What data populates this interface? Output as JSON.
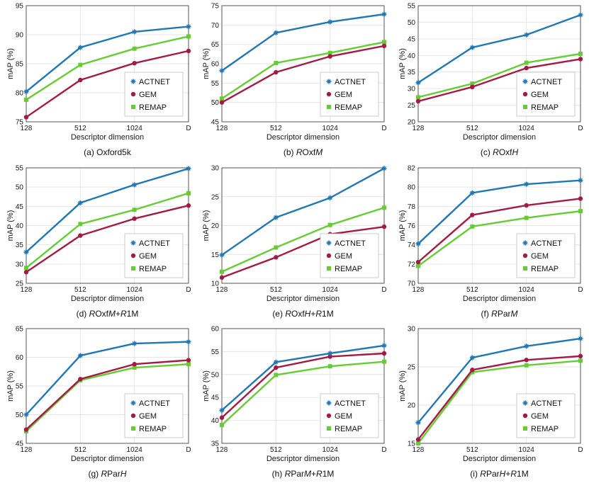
{
  "colors": {
    "ACTNET": "#1f77b4",
    "GEM": "#a31b45",
    "REMAP": "#66cc33",
    "grid": "#e6e6e6",
    "axis": "#333333"
  },
  "chart_data": [
    {
      "type": "line",
      "categories": [
        "128",
        "512",
        "1024",
        "D"
      ],
      "xlabel": "Descriptor dimension",
      "ylabel": "mAP (%)",
      "ylim": [
        75,
        95
      ],
      "yticks": [
        75,
        80,
        85,
        90,
        95
      ],
      "series": [
        {
          "name": "ACTNET",
          "values": [
            80.2,
            87.8,
            90.5,
            91.4
          ]
        },
        {
          "name": "GEM",
          "values": [
            75.8,
            82.2,
            85.1,
            87.2
          ]
        },
        {
          "name": "REMAP",
          "values": [
            78.8,
            84.8,
            87.6,
            89.7
          ]
        }
      ],
      "caption": [
        {
          "t": "(a) Oxford5k",
          "i": false
        }
      ]
    },
    {
      "type": "line",
      "categories": [
        "128",
        "512",
        "1024",
        "D"
      ],
      "xlabel": "Descriptor dimension",
      "ylabel": "mAP (%)",
      "ylim": [
        45,
        75
      ],
      "yticks": [
        45,
        50,
        55,
        60,
        65,
        70,
        75
      ],
      "series": [
        {
          "name": "ACTNET",
          "values": [
            58.2,
            68.0,
            70.8,
            72.8
          ]
        },
        {
          "name": "GEM",
          "values": [
            50.0,
            57.8,
            61.9,
            64.6
          ]
        },
        {
          "name": "REMAP",
          "values": [
            51.0,
            60.2,
            62.8,
            65.6
          ]
        }
      ],
      "caption": [
        {
          "t": "(b) ",
          "i": false
        },
        {
          "t": "R",
          "i": true
        },
        {
          "t": "Oxf",
          "i": false
        },
        {
          "t": "M",
          "i": true
        }
      ]
    },
    {
      "type": "line",
      "categories": [
        "128",
        "512",
        "1024",
        "D"
      ],
      "xlabel": "Descriptor dimension",
      "ylabel": "mAP (%)",
      "ylim": [
        20,
        55
      ],
      "yticks": [
        20,
        25,
        30,
        35,
        40,
        45,
        50,
        55
      ],
      "series": [
        {
          "name": "ACTNET",
          "values": [
            31.8,
            42.4,
            46.2,
            52.2
          ]
        },
        {
          "name": "GEM",
          "values": [
            26.2,
            30.5,
            36.2,
            38.9
          ]
        },
        {
          "name": "REMAP",
          "values": [
            27.4,
            31.5,
            37.8,
            40.5
          ]
        }
      ],
      "caption": [
        {
          "t": "(c) ",
          "i": false
        },
        {
          "t": "R",
          "i": true
        },
        {
          "t": "Oxf",
          "i": false
        },
        {
          "t": "H",
          "i": true
        }
      ]
    },
    {
      "type": "line",
      "categories": [
        "128",
        "512",
        "1024",
        "D"
      ],
      "xlabel": "Descriptor dimension",
      "ylabel": "mAP (%)",
      "ylim": [
        25,
        55
      ],
      "yticks": [
        25,
        30,
        35,
        40,
        45,
        50,
        55
      ],
      "series": [
        {
          "name": "ACTNET",
          "values": [
            33.1,
            45.9,
            50.6,
            54.8
          ]
        },
        {
          "name": "GEM",
          "values": [
            27.9,
            37.4,
            41.8,
            45.2
          ]
        },
        {
          "name": "REMAP",
          "values": [
            29.0,
            40.4,
            44.1,
            48.4
          ]
        }
      ],
      "caption": [
        {
          "t": "(d) ",
          "i": false
        },
        {
          "t": "R",
          "i": true
        },
        {
          "t": "Oxf",
          "i": false
        },
        {
          "t": "M",
          "i": true
        },
        {
          "t": "+",
          "i": false
        },
        {
          "t": "R",
          "i": true
        },
        {
          "t": "1M",
          "i": false
        }
      ]
    },
    {
      "type": "line",
      "categories": [
        "128",
        "512",
        "1024",
        "D"
      ],
      "xlabel": "Descriptor dimension",
      "ylabel": "mAP (%)",
      "ylim": [
        10,
        30
      ],
      "yticks": [
        10,
        15,
        20,
        25,
        30
      ],
      "series": [
        {
          "name": "ACTNET",
          "values": [
            14.9,
            21.4,
            24.8,
            29.9
          ]
        },
        {
          "name": "GEM",
          "values": [
            11.0,
            14.5,
            18.5,
            19.8
          ]
        },
        {
          "name": "REMAP",
          "values": [
            12.0,
            16.2,
            20.1,
            23.1
          ]
        }
      ],
      "caption": [
        {
          "t": "(e) ",
          "i": false
        },
        {
          "t": "R",
          "i": true
        },
        {
          "t": "Oxf",
          "i": false
        },
        {
          "t": "H",
          "i": true
        },
        {
          "t": "+",
          "i": false
        },
        {
          "t": "R",
          "i": true
        },
        {
          "t": "1M",
          "i": false
        }
      ]
    },
    {
      "type": "line",
      "categories": [
        "128",
        "512",
        "1024",
        "D"
      ],
      "xlabel": "Descriptor dimension",
      "ylabel": "mAP (%)",
      "ylim": [
        70,
        82
      ],
      "yticks": [
        70,
        72,
        74,
        76,
        78,
        80,
        82
      ],
      "series": [
        {
          "name": "ACTNET",
          "values": [
            74.1,
            79.4,
            80.3,
            80.7
          ]
        },
        {
          "name": "GEM",
          "values": [
            72.2,
            77.1,
            78.1,
            78.8
          ]
        },
        {
          "name": "REMAP",
          "values": [
            71.8,
            75.9,
            76.8,
            77.5
          ]
        }
      ],
      "caption": [
        {
          "t": "(f) ",
          "i": false
        },
        {
          "t": "R",
          "i": true
        },
        {
          "t": "Par",
          "i": false
        },
        {
          "t": "M",
          "i": true
        }
      ]
    },
    {
      "type": "line",
      "categories": [
        "128",
        "512",
        "1024",
        "D"
      ],
      "xlabel": "Descriptor dimension",
      "ylabel": "mAP (%)",
      "ylim": [
        45,
        65
      ],
      "yticks": [
        45,
        50,
        55,
        60,
        65
      ],
      "series": [
        {
          "name": "ACTNET",
          "values": [
            50.0,
            60.3,
            62.4,
            62.7
          ]
        },
        {
          "name": "GEM",
          "values": [
            47.4,
            56.2,
            58.8,
            59.5
          ]
        },
        {
          "name": "REMAP",
          "values": [
            47.1,
            56.0,
            58.2,
            58.8
          ]
        }
      ],
      "caption": [
        {
          "t": "(g) ",
          "i": false
        },
        {
          "t": "R",
          "i": true
        },
        {
          "t": "Par",
          "i": false
        },
        {
          "t": "H",
          "i": true
        }
      ]
    },
    {
      "type": "line",
      "categories": [
        "128",
        "512",
        "1024",
        "D"
      ],
      "xlabel": "Descriptor dimension",
      "ylabel": "mAP (%)",
      "ylim": [
        35,
        60
      ],
      "yticks": [
        35,
        40,
        45,
        50,
        55,
        60
      ],
      "series": [
        {
          "name": "ACTNET",
          "values": [
            42.2,
            52.7,
            54.6,
            56.3
          ]
        },
        {
          "name": "GEM",
          "values": [
            40.6,
            51.5,
            53.9,
            54.6
          ]
        },
        {
          "name": "REMAP",
          "values": [
            39.0,
            49.9,
            51.8,
            52.8
          ]
        }
      ],
      "caption": [
        {
          "t": "(h) ",
          "i": false
        },
        {
          "t": "R",
          "i": true
        },
        {
          "t": "Par",
          "i": false
        },
        {
          "t": "M",
          "i": true
        },
        {
          "t": "+",
          "i": false
        },
        {
          "t": "R",
          "i": true
        },
        {
          "t": "1M",
          "i": false
        }
      ]
    },
    {
      "type": "line",
      "categories": [
        "128",
        "512",
        "1024",
        "D"
      ],
      "xlabel": "Descriptor dimension",
      "ylabel": "mAP (%)",
      "ylim": [
        15,
        30
      ],
      "yticks": [
        15,
        20,
        25,
        30
      ],
      "series": [
        {
          "name": "ACTNET",
          "values": [
            17.7,
            26.2,
            27.7,
            28.7
          ]
        },
        {
          "name": "GEM",
          "values": [
            15.5,
            24.6,
            25.9,
            26.4
          ]
        },
        {
          "name": "REMAP",
          "values": [
            15.0,
            24.3,
            25.2,
            25.8
          ]
        }
      ],
      "caption": [
        {
          "t": "(i) ",
          "i": false
        },
        {
          "t": "R",
          "i": true
        },
        {
          "t": "Par",
          "i": false
        },
        {
          "t": "H",
          "i": true
        },
        {
          "t": "+",
          "i": false
        },
        {
          "t": "R",
          "i": true
        },
        {
          "t": "1M",
          "i": false
        }
      ]
    }
  ]
}
